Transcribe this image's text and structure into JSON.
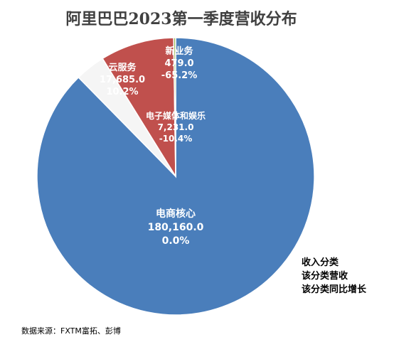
{
  "chart_data": {
    "type": "pie",
    "title": "阿里巴巴2023第一季度营收分布",
    "slices": [
      {
        "name": "电商核心",
        "value": 180160.0,
        "value_label": "180,160.0",
        "growth": "0.0%",
        "color": "#4a7ebb",
        "label_color": "#ffffff"
      },
      {
        "name": "电子媒体和娱乐",
        "value": 7231.0,
        "value_label": "7,231.0",
        "growth": "-10.4%",
        "color": "#f5f5f5",
        "label_color": "#ffffff"
      },
      {
        "name": "云服务",
        "value": 17685.0,
        "value_label": "17,685.0",
        "growth": "10.2%",
        "color": "#c0504d",
        "label_color": "#ffffff"
      },
      {
        "name": "新业务",
        "value": 479.0,
        "value_label": "479.0",
        "growth": "-65.2%",
        "color": "#9bbb59",
        "label_color": "#ffffff"
      }
    ],
    "legend": [
      "收入分类",
      "该分类营收",
      "该分类同比增长"
    ],
    "legend_position": "bottom-right"
  },
  "footer": {
    "source": "数据来源：FXTM富拓、彭博"
  }
}
